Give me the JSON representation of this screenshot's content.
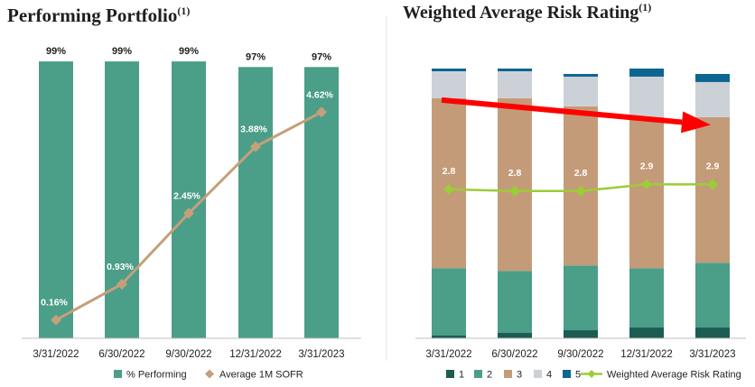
{
  "charts": [
    {
      "title": "Performing Portfolio",
      "title_sup": "(1)",
      "chart_data": {
        "type": "bar",
        "categories": [
          "3/31/2022",
          "6/30/2022",
          "9/30/2022",
          "12/31/2022",
          "3/31/2023"
        ],
        "series": [
          {
            "name": "% Performing",
            "type": "bar",
            "values": [
              99,
              99,
              99,
              97,
              97
            ],
            "labels": [
              "99%",
              "99%",
              "99%",
              "97%",
              "97%"
            ],
            "color": "#4b9e88"
          },
          {
            "name": "Average 1M SOFR",
            "type": "line",
            "values": [
              0.16,
              0.93,
              2.45,
              3.88,
              4.62
            ],
            "labels": [
              "0.16%",
              "0.93%",
              "2.45%",
              "3.88%",
              "4.62%"
            ],
            "color": "#c4a07a"
          }
        ],
        "bar_ylim": [
          0,
          100
        ],
        "line_ylim": [
          0,
          6
        ],
        "legend_position": "bottom"
      }
    },
    {
      "title": "Weighted Average Risk Rating",
      "title_sup": "(1)",
      "chart_data": {
        "type": "bar",
        "stacked": true,
        "categories": [
          "3/31/2022",
          "6/30/2022",
          "9/30/2022",
          "12/31/2022",
          "3/31/2023"
        ],
        "series": [
          {
            "name": "1",
            "type": "bar",
            "values": [
              1,
              2,
              3,
              4,
              4
            ],
            "color": "#1d5c52"
          },
          {
            "name": "2",
            "type": "bar",
            "values": [
              25,
              23,
              24,
              22,
              24
            ],
            "color": "#4b9e88"
          },
          {
            "name": "3",
            "type": "bar",
            "values": [
              63,
              64,
              59,
              56,
              54
            ],
            "color": "#c49b78"
          },
          {
            "name": "4",
            "type": "bar",
            "values": [
              10,
              10,
              11,
              15,
              13
            ],
            "color": "#ccd1d8"
          },
          {
            "name": "5",
            "type": "bar",
            "values": [
              1,
              1,
              1,
              3,
              3
            ],
            "color": "#0d6591"
          },
          {
            "name": "Weighted Average Risk Rating",
            "type": "line",
            "values": [
              2.8,
              2.8,
              2.8,
              2.9,
              2.9
            ],
            "labels": [
              "2.8",
              "2.8",
              "2.8",
              "2.9",
              "2.9"
            ],
            "color": "#9ccc37"
          }
        ],
        "ylim": [
          0,
          100
        ],
        "line_ylim": [
          0,
          5.5
        ],
        "annotation": "red arrow trending downward across the bars",
        "annotation_color": "#ff0000",
        "legend_position": "bottom"
      }
    }
  ]
}
